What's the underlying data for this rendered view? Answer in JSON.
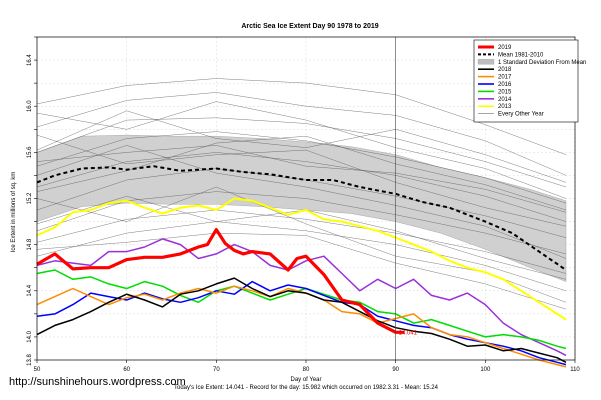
{
  "chart_data": {
    "type": "line",
    "title": "Arctic Sea Ice Extent Day 90 1978 to 2019",
    "xlabel": "Day of Year",
    "ylabel": "Ice Extent in millions of sq. km",
    "xlim": [
      50,
      110
    ],
    "ylim": [
      13.8,
      16.6
    ],
    "x_ticks": [
      50,
      60,
      70,
      80,
      90,
      100,
      110
    ],
    "y_ticks": [
      13.8,
      14.0,
      14.2,
      14.4,
      14.6,
      14.8,
      15.0,
      15.2,
      15.4,
      15.6,
      15.8,
      16.0,
      16.2,
      16.4,
      16.6
    ],
    "y_tick_labels_shown": [
      "13.8",
      "14.0",
      "14.4",
      "14.8",
      "15.2",
      "15.6",
      "16.0",
      "16.4"
    ],
    "vline_day": 90,
    "grid": true,
    "legend_position": "top-right",
    "annotation": "14.041",
    "footer": "Today's Ice Extent: 14.041  - Record for the day: 15.982 which occurred on 1982.3.31  - Mean: 15.24",
    "watermark": "http://sunshinehours.wordpress.com",
    "legend": [
      {
        "label": "2019",
        "color": "#ff0000",
        "style": "thick"
      },
      {
        "label": "Mean 1981-2010",
        "color": "#000000",
        "style": "dashed"
      },
      {
        "label": "1 Standard Deviation From Mean",
        "color": "#bdbdbd",
        "style": "box"
      },
      {
        "label": "2018",
        "color": "#000000",
        "style": "solid"
      },
      {
        "label": "2017",
        "color": "#ff8c00",
        "style": "solid"
      },
      {
        "label": "2016",
        "color": "#0000ff",
        "style": "solid"
      },
      {
        "label": "2015",
        "color": "#00dd00",
        "style": "solid"
      },
      {
        "label": "2014",
        "color": "#9b30d9",
        "style": "solid"
      },
      {
        "label": "2013",
        "color": "#ffff00",
        "style": "solid"
      },
      {
        "label": "Every Other Year",
        "color": "#6a6a6a",
        "style": "thin"
      }
    ],
    "band": {
      "x": [
        50,
        55,
        60,
        65,
        70,
        75,
        80,
        85,
        90,
        95,
        100,
        105,
        109
      ],
      "upper": [
        15.6,
        15.74,
        15.75,
        15.74,
        15.74,
        15.72,
        15.69,
        15.65,
        15.58,
        15.47,
        15.38,
        15.28,
        15.18
      ],
      "lower": [
        15.0,
        15.13,
        15.16,
        15.15,
        15.15,
        15.13,
        15.1,
        15.07,
        15.0,
        14.9,
        14.76,
        14.6,
        14.48
      ]
    },
    "mean": {
      "x": [
        50,
        52,
        55,
        58,
        60,
        63,
        66,
        70,
        73,
        76,
        80,
        83,
        86,
        90,
        93,
        96,
        100,
        103,
        106,
        109
      ],
      "values": [
        15.34,
        15.4,
        15.46,
        15.47,
        15.45,
        15.48,
        15.44,
        15.46,
        15.43,
        15.41,
        15.36,
        15.36,
        15.3,
        15.24,
        15.17,
        15.12,
        15.0,
        14.9,
        14.74,
        14.58
      ]
    },
    "series": [
      {
        "name": "2019",
        "color": "#ff0000",
        "width": 3.2,
        "x": [
          50,
          52,
          54,
          56,
          58,
          60,
          62,
          64,
          66,
          68,
          69,
          70,
          71,
          72,
          73,
          74,
          76,
          78,
          79,
          80,
          82,
          84,
          86,
          88,
          90,
          91
        ],
        "values": [
          14.63,
          14.72,
          14.59,
          14.6,
          14.6,
          14.67,
          14.69,
          14.69,
          14.72,
          14.78,
          14.8,
          14.93,
          14.81,
          14.75,
          14.72,
          14.74,
          14.72,
          14.58,
          14.68,
          14.7,
          14.54,
          14.32,
          14.28,
          14.12,
          14.04,
          14.04
        ]
      },
      {
        "name": "2018",
        "color": "#000000",
        "width": 1.5,
        "x": [
          50,
          52,
          54,
          56,
          58,
          60,
          62,
          64,
          66,
          68,
          70,
          72,
          74,
          76,
          78,
          80,
          82,
          84,
          86,
          88,
          90,
          92,
          94,
          96,
          98,
          100,
          102,
          104,
          106,
          108,
          109
        ],
        "values": [
          14.02,
          14.1,
          14.15,
          14.22,
          14.3,
          14.37,
          14.32,
          14.26,
          14.37,
          14.4,
          14.46,
          14.51,
          14.42,
          14.35,
          14.4,
          14.38,
          14.32,
          14.3,
          14.22,
          14.14,
          14.08,
          14.05,
          14.03,
          13.98,
          13.92,
          13.93,
          13.88,
          13.9,
          13.86,
          13.82,
          13.78
        ]
      },
      {
        "name": "2017",
        "color": "#ff8c00",
        "width": 1.5,
        "x": [
          50,
          52,
          54,
          56,
          58,
          60,
          62,
          64,
          66,
          68,
          70,
          72,
          74,
          76,
          78,
          80,
          82,
          84,
          86,
          88,
          90,
          92,
          94,
          96,
          98,
          100,
          102,
          104,
          106,
          108,
          109
        ],
        "values": [
          14.28,
          14.35,
          14.42,
          14.35,
          14.28,
          14.34,
          14.37,
          14.32,
          14.38,
          14.42,
          14.38,
          14.44,
          14.4,
          14.35,
          14.42,
          14.38,
          14.32,
          14.22,
          14.2,
          14.12,
          14.16,
          14.2,
          14.08,
          14.02,
          14.0,
          13.95,
          13.9,
          13.85,
          13.8,
          13.76,
          13.74
        ]
      },
      {
        "name": "2016",
        "color": "#0000ff",
        "width": 1.5,
        "x": [
          50,
          52,
          54,
          56,
          58,
          60,
          62,
          64,
          66,
          68,
          70,
          72,
          74,
          76,
          78,
          80,
          82,
          84,
          86,
          88,
          90,
          92,
          94,
          96,
          98,
          100,
          102,
          104,
          106,
          108,
          109
        ],
        "values": [
          14.18,
          14.2,
          14.28,
          14.38,
          14.35,
          14.32,
          14.38,
          14.33,
          14.3,
          14.34,
          14.4,
          14.37,
          14.48,
          14.4,
          14.45,
          14.42,
          14.36,
          14.3,
          14.28,
          14.18,
          14.14,
          14.1,
          14.08,
          14.02,
          13.98,
          13.95,
          13.92,
          13.88,
          13.82,
          13.78,
          13.76
        ]
      },
      {
        "name": "2015",
        "color": "#00dd00",
        "width": 1.5,
        "x": [
          50,
          52,
          54,
          56,
          58,
          60,
          62,
          64,
          66,
          68,
          70,
          72,
          74,
          76,
          78,
          80,
          82,
          84,
          86,
          88,
          90,
          92,
          94,
          96,
          98,
          100,
          102,
          104,
          106,
          108,
          109
        ],
        "values": [
          14.55,
          14.58,
          14.5,
          14.52,
          14.46,
          14.42,
          14.48,
          14.44,
          14.36,
          14.3,
          14.4,
          14.44,
          14.38,
          14.32,
          14.37,
          14.42,
          14.37,
          14.32,
          14.3,
          14.22,
          14.2,
          14.12,
          14.15,
          14.1,
          14.05,
          14.0,
          14.02,
          14.0,
          13.97,
          13.92,
          13.9
        ]
      },
      {
        "name": "2014",
        "color": "#9b30d9",
        "width": 1.5,
        "x": [
          50,
          52,
          54,
          56,
          58,
          60,
          62,
          64,
          66,
          68,
          70,
          72,
          74,
          76,
          78,
          80,
          82,
          84,
          86,
          88,
          90,
          92,
          94,
          96,
          98,
          100,
          102,
          104,
          106,
          108,
          109
        ],
        "values": [
          14.62,
          14.66,
          14.64,
          14.62,
          14.74,
          14.74,
          14.78,
          14.85,
          14.8,
          14.68,
          14.72,
          14.8,
          14.74,
          14.62,
          14.58,
          14.66,
          14.7,
          14.55,
          14.4,
          14.5,
          14.42,
          14.5,
          14.36,
          14.32,
          14.38,
          14.28,
          14.12,
          14.02,
          13.95,
          13.88,
          13.84
        ]
      },
      {
        "name": "2013",
        "color": "#ffff00",
        "width": 2.0,
        "x": [
          50,
          52,
          54,
          56,
          58,
          60,
          62,
          64,
          66,
          68,
          70,
          72,
          74,
          76,
          78,
          80,
          82,
          84,
          86,
          88,
          90,
          92,
          94,
          96,
          98,
          100,
          102,
          104,
          106,
          108,
          109
        ],
        "values": [
          14.88,
          14.95,
          15.08,
          15.1,
          15.16,
          15.18,
          15.12,
          15.07,
          15.12,
          15.14,
          15.1,
          15.2,
          15.18,
          15.12,
          15.06,
          15.1,
          15.02,
          15.0,
          14.96,
          14.92,
          14.86,
          14.8,
          14.74,
          14.66,
          14.6,
          14.56,
          14.5,
          14.4,
          14.3,
          14.2,
          14.15
        ]
      }
    ],
    "other_years": [
      {
        "x": [
          50,
          60,
          70,
          80,
          90,
          100,
          109
        ],
        "values": [
          16.02,
          16.18,
          16.24,
          16.2,
          16.1,
          15.84,
          15.58
        ]
      },
      {
        "x": [
          50,
          60,
          70,
          80,
          90,
          100,
          109
        ],
        "values": [
          15.82,
          16.05,
          16.12,
          16.0,
          15.92,
          15.7,
          15.4
        ]
      },
      {
        "x": [
          50,
          60,
          70,
          80,
          90,
          100,
          109
        ],
        "values": [
          15.6,
          15.88,
          15.9,
          15.85,
          15.72,
          15.52,
          15.3
        ]
      },
      {
        "x": [
          50,
          60,
          70,
          80,
          90,
          100,
          109
        ],
        "values": [
          15.48,
          15.72,
          15.78,
          15.7,
          15.56,
          15.38,
          15.16
        ]
      },
      {
        "x": [
          50,
          60,
          70,
          80,
          90,
          100,
          109
        ],
        "values": [
          15.3,
          15.52,
          15.6,
          15.52,
          15.4,
          15.22,
          15.0
        ]
      },
      {
        "x": [
          50,
          60,
          70,
          80,
          90,
          100,
          109
        ],
        "values": [
          15.1,
          15.36,
          15.46,
          15.36,
          15.22,
          15.05,
          14.86
        ]
      },
      {
        "x": [
          50,
          60,
          70,
          80,
          90,
          100,
          109
        ],
        "values": [
          14.92,
          15.18,
          15.26,
          15.2,
          15.06,
          14.9,
          14.72
        ]
      },
      {
        "x": [
          50,
          60,
          70,
          80,
          90,
          100,
          109
        ],
        "values": [
          14.82,
          15.02,
          15.1,
          15.02,
          14.9,
          14.74,
          14.55
        ]
      },
      {
        "x": [
          50,
          60,
          70,
          80,
          90,
          100,
          109
        ],
        "values": [
          14.7,
          14.9,
          15.0,
          14.92,
          14.8,
          14.62,
          14.4
        ]
      },
      {
        "x": [
          50,
          60,
          70,
          80,
          90,
          100,
          109
        ],
        "values": [
          15.52,
          15.6,
          15.66,
          15.48,
          15.42,
          15.28,
          15.08
        ]
      },
      {
        "x": [
          50,
          60,
          70,
          80,
          90,
          100,
          109
        ],
        "values": [
          15.75,
          15.5,
          15.58,
          15.62,
          15.34,
          15.12,
          14.96
        ]
      },
      {
        "x": [
          50,
          60,
          70,
          80,
          90,
          100,
          109
        ],
        "values": [
          15.4,
          15.66,
          15.42,
          15.3,
          15.14,
          14.96,
          14.68
        ]
      },
      {
        "x": [
          50,
          60,
          70,
          80,
          90,
          100,
          109
        ],
        "values": [
          14.98,
          15.22,
          15.0,
          15.1,
          14.92,
          14.68,
          14.5
        ]
      },
      {
        "x": [
          50,
          60,
          70,
          80,
          90,
          100,
          109
        ],
        "values": [
          15.2,
          15.0,
          15.3,
          14.98,
          14.7,
          14.56,
          14.3
        ]
      },
      {
        "x": [
          50,
          60,
          70,
          80,
          90,
          100,
          109
        ],
        "values": [
          14.76,
          14.82,
          14.9,
          14.88,
          14.64,
          14.46,
          14.24
        ]
      },
      {
        "x": [
          50,
          60,
          70,
          80,
          90,
          100,
          109
        ],
        "values": [
          15.94,
          15.8,
          16.04,
          15.88,
          15.64,
          15.46,
          15.2
        ]
      },
      {
        "x": [
          50,
          60,
          70,
          80,
          90,
          100,
          109
        ],
        "values": [
          15.62,
          15.96,
          15.72,
          15.64,
          15.8,
          15.58,
          15.34
        ]
      },
      {
        "x": [
          50,
          60,
          70,
          80,
          90,
          100,
          109
        ],
        "values": [
          15.26,
          15.44,
          15.68,
          15.74,
          15.5,
          15.32,
          15.1
        ]
      }
    ]
  }
}
